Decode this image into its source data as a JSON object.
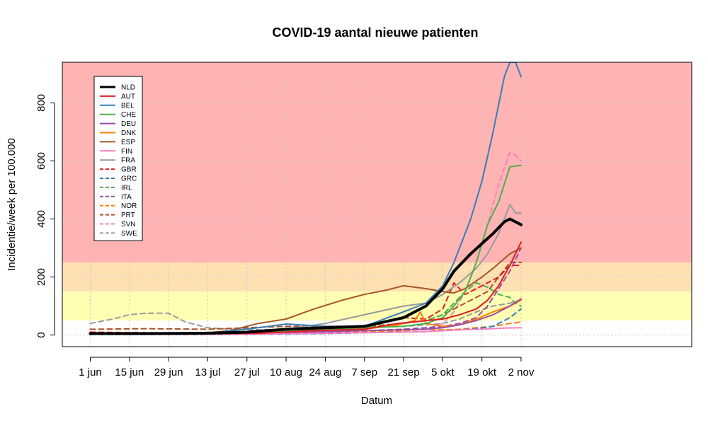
{
  "chart_data": {
    "type": "line",
    "title": "COVID-19 aantal nieuwe patienten",
    "xlabel": "Datum",
    "ylabel": "Incidentie/week per 100.000",
    "xlim": [
      -10,
      215
    ],
    "ylim": [
      -40,
      940
    ],
    "x_ticks": [
      {
        "day": 0,
        "label": "1 jun"
      },
      {
        "day": 14,
        "label": "15 jun"
      },
      {
        "day": 28,
        "label": "29 jun"
      },
      {
        "day": 42,
        "label": "13 jul"
      },
      {
        "day": 56,
        "label": "27 jul"
      },
      {
        "day": 70,
        "label": "10 aug"
      },
      {
        "day": 84,
        "label": "24 aug"
      },
      {
        "day": 98,
        "label": "7 sep"
      },
      {
        "day": 112,
        "label": "21 sep"
      },
      {
        "day": 126,
        "label": "5 okt"
      },
      {
        "day": 140,
        "label": "19 okt"
      },
      {
        "day": 154,
        "label": "2 nov"
      }
    ],
    "y_ticks": [
      0,
      200,
      400,
      600,
      800
    ],
    "grid": true,
    "bands": [
      {
        "from": 0,
        "to": 50,
        "color": "#ffffff"
      },
      {
        "from": 50,
        "to": 150,
        "color": "#ffffb3"
      },
      {
        "from": 150,
        "to": 250,
        "color": "#ffe0b3"
      },
      {
        "from": 250,
        "to": 940,
        "color": "#ffb3b3"
      }
    ],
    "legend_position": "top-left",
    "series": [
      {
        "name": "NLD",
        "color": "#000000",
        "dash": "solid",
        "x": [
          0,
          20,
          40,
          56,
          70,
          84,
          98,
          112,
          120,
          126,
          130,
          136,
          140,
          144,
          148,
          150,
          154
        ],
        "y": [
          5,
          5,
          6,
          10,
          20,
          25,
          30,
          60,
          100,
          160,
          220,
          280,
          315,
          350,
          390,
          400,
          380
        ]
      },
      {
        "name": "AUT",
        "color": "#e41a1c",
        "dash": "solid",
        "x": [
          0,
          20,
          40,
          60,
          80,
          98,
          110,
          120,
          126,
          132,
          138,
          142,
          146,
          150,
          154
        ],
        "y": [
          5,
          4,
          4,
          6,
          15,
          20,
          40,
          50,
          55,
          70,
          90,
          120,
          170,
          240,
          320
        ]
      },
      {
        "name": "BEL",
        "color": "#377eb8",
        "dash": "solid",
        "x": [
          0,
          20,
          42,
          60,
          70,
          84,
          98,
          112,
          120,
          126,
          130,
          136,
          140,
          144,
          148,
          150,
          152,
          154
        ],
        "y": [
          5,
          4,
          5,
          25,
          38,
          30,
          30,
          80,
          110,
          170,
          250,
          400,
          530,
          700,
          890,
          940,
          940,
          890
        ]
      },
      {
        "name": "CHE",
        "color": "#4daf4a",
        "dash": "solid",
        "x": [
          0,
          20,
          40,
          60,
          84,
          98,
          112,
          120,
          126,
          130,
          134,
          138,
          142,
          146,
          150,
          154
        ],
        "y": [
          5,
          4,
          4,
          10,
          20,
          25,
          30,
          40,
          60,
          100,
          150,
          250,
          380,
          460,
          580,
          585
        ]
      },
      {
        "name": "DEU",
        "color": "#984ea3",
        "dash": "solid",
        "x": [
          0,
          20,
          42,
          60,
          84,
          98,
          112,
          120,
          126,
          132,
          138,
          144,
          150,
          154
        ],
        "y": [
          5,
          4,
          4,
          8,
          12,
          15,
          18,
          20,
          25,
          35,
          50,
          70,
          100,
          125
        ]
      },
      {
        "name": "DNK",
        "color": "#ff7f00",
        "dash": "solid",
        "x": [
          0,
          20,
          42,
          60,
          84,
          98,
          110,
          116,
          118,
          120,
          126,
          132,
          138,
          144,
          150,
          154
        ],
        "y": [
          5,
          4,
          5,
          8,
          15,
          20,
          35,
          50,
          80,
          40,
          30,
          35,
          55,
          80,
          100,
          120
        ]
      },
      {
        "name": "ESP",
        "color": "#a65628",
        "dash": "solid",
        "x": [
          0,
          20,
          40,
          50,
          60,
          70,
          80,
          90,
          98,
          106,
          112,
          120,
          126,
          130,
          134,
          140,
          144,
          150,
          154
        ],
        "y": [
          6,
          6,
          6,
          15,
          40,
          55,
          90,
          120,
          140,
          155,
          170,
          160,
          150,
          145,
          160,
          200,
          230,
          280,
          300
        ]
      },
      {
        "name": "FIN",
        "color": "#f781bf",
        "dash": "solid",
        "x": [
          0,
          20,
          42,
          60,
          84,
          98,
          112,
          120,
          126,
          132,
          140,
          148,
          154
        ],
        "y": [
          3,
          3,
          3,
          4,
          6,
          8,
          10,
          12,
          15,
          18,
          20,
          24,
          25
        ]
      },
      {
        "name": "FRA",
        "color": "#999999",
        "dash": "solid",
        "x": [
          0,
          20,
          42,
          56,
          70,
          84,
          98,
          112,
          120,
          126,
          132,
          138,
          142,
          146,
          150,
          152,
          154
        ],
        "y": [
          5,
          5,
          5,
          10,
          20,
          40,
          70,
          100,
          110,
          140,
          180,
          230,
          280,
          350,
          450,
          420,
          420
        ]
      },
      {
        "name": "GBR",
        "color": "#e41a1c",
        "dash": "dashed",
        "x": [
          0,
          20,
          42,
          60,
          84,
          98,
          106,
          112,
          120,
          126,
          130,
          134,
          138,
          142,
          146,
          150,
          154
        ],
        "y": [
          10,
          8,
          6,
          10,
          20,
          30,
          45,
          60,
          55,
          90,
          180,
          140,
          160,
          180,
          200,
          240,
          240
        ]
      },
      {
        "name": "GRC",
        "color": "#377eb8",
        "dash": "dashed",
        "x": [
          0,
          20,
          42,
          60,
          84,
          98,
          112,
          120,
          126,
          132,
          138,
          144,
          150,
          154
        ],
        "y": [
          2,
          2,
          2,
          3,
          5,
          8,
          10,
          12,
          15,
          18,
          22,
          30,
          60,
          90
        ]
      },
      {
        "name": "IRL",
        "color": "#4daf4a",
        "dash": "dashed",
        "x": [
          0,
          20,
          42,
          60,
          84,
          98,
          112,
          120,
          126,
          130,
          134,
          138,
          142,
          146,
          150,
          152,
          154
        ],
        "y": [
          5,
          4,
          4,
          8,
          15,
          25,
          40,
          50,
          70,
          110,
          150,
          180,
          165,
          140,
          130,
          110,
          100
        ]
      },
      {
        "name": "ITA",
        "color": "#984ea3",
        "dash": "dashed",
        "x": [
          0,
          20,
          42,
          60,
          84,
          98,
          112,
          120,
          126,
          132,
          138,
          142,
          146,
          150,
          154
        ],
        "y": [
          5,
          4,
          4,
          6,
          10,
          15,
          20,
          25,
          30,
          40,
          60,
          100,
          160,
          220,
          300
        ]
      },
      {
        "name": "NOR",
        "color": "#ff7f00",
        "dash": "dashed",
        "x": [
          0,
          20,
          42,
          60,
          84,
          98,
          112,
          120,
          126,
          132,
          138,
          144,
          150,
          154
        ],
        "y": [
          3,
          3,
          3,
          4,
          6,
          10,
          15,
          20,
          18,
          20,
          25,
          30,
          40,
          45
        ]
      },
      {
        "name": "PRT",
        "color": "#a65628",
        "dash": "dashed",
        "x": [
          0,
          20,
          42,
          56,
          70,
          84,
          98,
          112,
          120,
          126,
          132,
          138,
          142,
          146,
          150,
          154
        ],
        "y": [
          20,
          22,
          20,
          25,
          30,
          30,
          30,
          40,
          50,
          70,
          100,
          130,
          150,
          200,
          250,
          250
        ]
      },
      {
        "name": "SVN",
        "color": "#f781bf",
        "dash": "dashed",
        "x": [
          0,
          20,
          42,
          60,
          84,
          98,
          112,
          120,
          126,
          130,
          134,
          138,
          142,
          146,
          150,
          152,
          154
        ],
        "y": [
          3,
          3,
          3,
          5,
          8,
          10,
          15,
          20,
          40,
          80,
          150,
          250,
          380,
          520,
          630,
          620,
          600
        ]
      },
      {
        "name": "SWE",
        "color": "#999999",
        "dash": "dashed",
        "x": [
          0,
          8,
          14,
          20,
          28,
          30,
          34,
          42,
          50,
          60,
          84,
          98,
          112,
          120,
          126,
          132,
          138,
          144,
          150,
          154
        ],
        "y": [
          40,
          55,
          70,
          75,
          75,
          65,
          45,
          25,
          20,
          18,
          20,
          25,
          30,
          35,
          40,
          55,
          80,
          100,
          110,
          120
        ]
      }
    ]
  }
}
